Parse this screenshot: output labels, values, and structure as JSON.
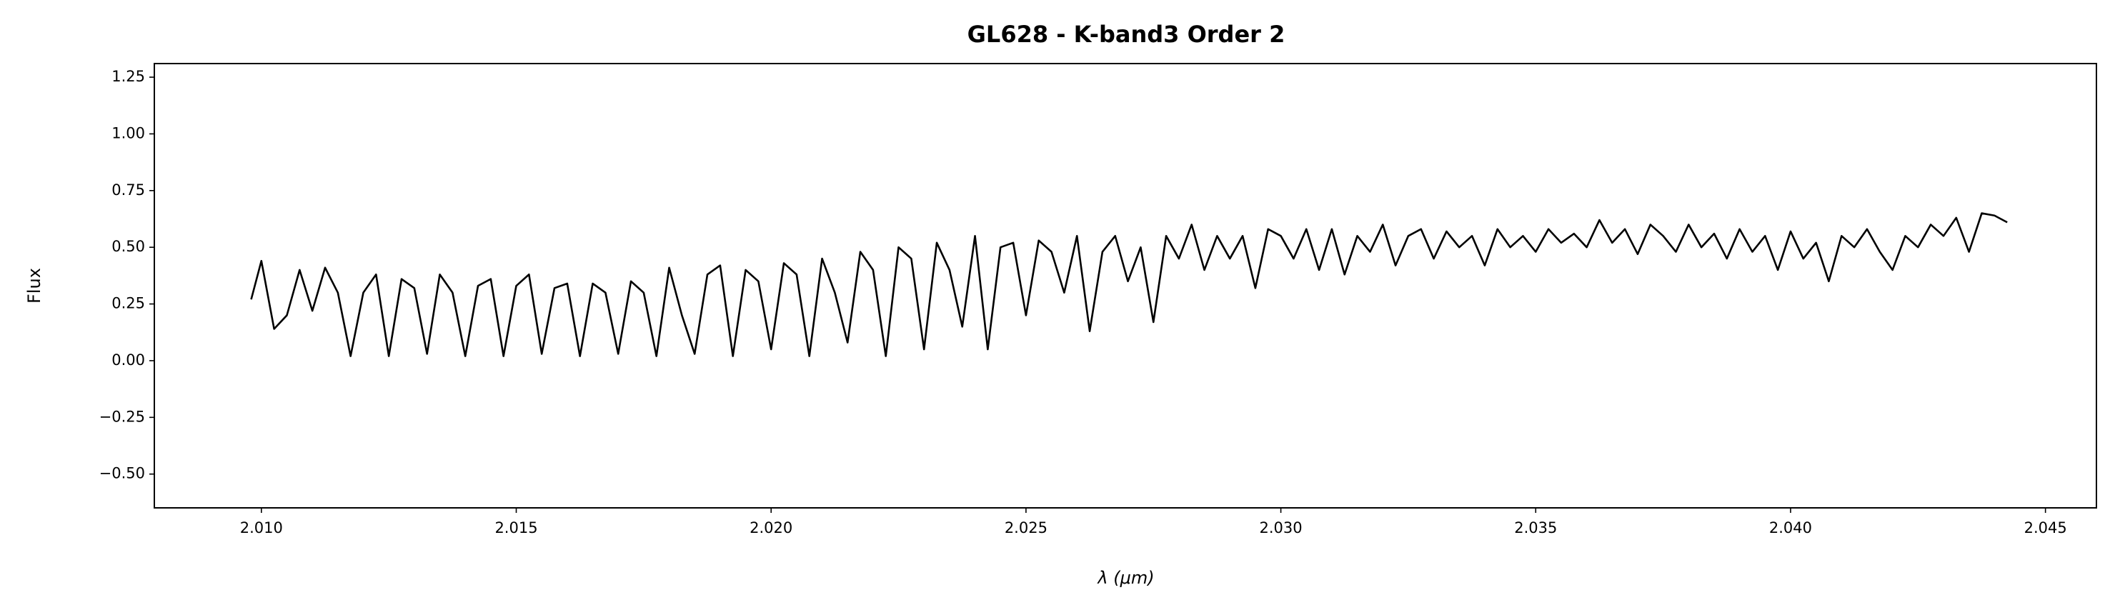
{
  "chart_data": {
    "type": "line",
    "title": "GL628 - K-band3 Order 2",
    "x_label": "λ (μm)",
    "y_label": "Flux",
    "color": "#000000",
    "grid": false,
    "xlim": [
      2.0079,
      2.046
    ],
    "ylim": [
      -0.649,
      1.31
    ],
    "xticks": [
      {
        "value": 2.01,
        "label": "2.010"
      },
      {
        "value": 2.015,
        "label": "2.015"
      },
      {
        "value": 2.02,
        "label": "2.020"
      },
      {
        "value": 2.025,
        "label": "2.025"
      },
      {
        "value": 2.03,
        "label": "2.030"
      },
      {
        "value": 2.035,
        "label": "2.035"
      },
      {
        "value": 2.04,
        "label": "2.040"
      },
      {
        "value": 2.045,
        "label": "2.045"
      }
    ],
    "yticks": [
      {
        "value": -0.5,
        "label": "−0.50"
      },
      {
        "value": -0.25,
        "label": "−0.25"
      },
      {
        "value": 0,
        "label": "0.00"
      },
      {
        "value": 0.25,
        "label": "0.25"
      },
      {
        "value": 0.5,
        "label": "0.50"
      },
      {
        "value": 0.75,
        "label": "0.75"
      },
      {
        "value": 1,
        "label": "1.00"
      },
      {
        "value": 1.25,
        "label": "1.25"
      }
    ],
    "x": [
      2.0098,
      2.01,
      2.01025,
      2.0105,
      2.01075,
      2.011,
      2.01125,
      2.0115,
      2.01175,
      2.012,
      2.01225,
      2.0125,
      2.01275,
      2.013,
      2.01325,
      2.0135,
      2.01375,
      2.014,
      2.01425,
      2.0145,
      2.01475,
      2.015,
      2.01525,
      2.0155,
      2.01575,
      2.016,
      2.01625,
      2.0165,
      2.01675,
      2.017,
      2.01725,
      2.0175,
      2.01775,
      2.018,
      2.01825,
      2.0185,
      2.01875,
      2.019,
      2.01925,
      2.0195,
      2.01975,
      2.02,
      2.02025,
      2.0205,
      2.02075,
      2.021,
      2.02125,
      2.0215,
      2.02175,
      2.022,
      2.02225,
      2.0225,
      2.02275,
      2.023,
      2.02325,
      2.0235,
      2.02375,
      2.024,
      2.02425,
      2.0245,
      2.02475,
      2.025,
      2.02525,
      2.0255,
      2.02575,
      2.026,
      2.02625,
      2.0265,
      2.02675,
      2.027,
      2.02725,
      2.0275,
      2.02775,
      2.028,
      2.02825,
      2.0285,
      2.02875,
      2.029,
      2.02925,
      2.0295,
      2.02975,
      2.03,
      2.03025,
      2.0305,
      2.03075,
      2.031,
      2.03125,
      2.0315,
      2.03175,
      2.032,
      2.03225,
      2.0325,
      2.03275,
      2.033,
      2.03325,
      2.0335,
      2.03375,
      2.034,
      2.03425,
      2.0345,
      2.03475,
      2.035,
      2.03525,
      2.0355,
      2.03575,
      2.036,
      2.03625,
      2.0365,
      2.03675,
      2.037,
      2.03725,
      2.0375,
      2.03775,
      2.038,
      2.03825,
      2.0385,
      2.03875,
      2.039,
      2.03925,
      2.0395,
      2.03975,
      2.04,
      2.04025,
      2.0405,
      2.04075,
      2.041,
      2.04125,
      2.0415,
      2.04175,
      2.042,
      2.04225,
      2.0425,
      2.04275,
      2.043,
      2.04325,
      2.0435,
      2.04375,
      2.044,
      2.04425
    ],
    "values": [
      0.27,
      0.44,
      0.14,
      0.2,
      0.4,
      0.22,
      0.41,
      0.3,
      0.02,
      0.3,
      0.38,
      0.02,
      0.36,
      0.32,
      0.03,
      0.38,
      0.3,
      0.02,
      0.33,
      0.36,
      0.02,
      0.33,
      0.38,
      0.03,
      0.32,
      0.34,
      0.02,
      0.34,
      0.3,
      0.03,
      0.35,
      0.3,
      0.02,
      0.41,
      0.2,
      0.03,
      0.38,
      0.42,
      0.02,
      0.4,
      0.35,
      0.05,
      0.43,
      0.38,
      0.02,
      0.45,
      0.3,
      0.08,
      0.48,
      0.4,
      0.02,
      0.5,
      0.45,
      0.05,
      0.52,
      0.4,
      0.15,
      0.55,
      0.05,
      0.5,
      0.52,
      0.2,
      0.53,
      0.48,
      0.3,
      0.55,
      0.13,
      0.48,
      0.55,
      0.35,
      0.5,
      0.17,
      0.55,
      0.45,
      0.6,
      0.4,
      0.55,
      0.45,
      0.55,
      0.32,
      0.58,
      0.55,
      0.45,
      0.58,
      0.4,
      0.58,
      0.38,
      0.55,
      0.48,
      0.6,
      0.42,
      0.55,
      0.58,
      0.45,
      0.57,
      0.5,
      0.55,
      0.42,
      0.58,
      0.5,
      0.55,
      0.48,
      0.58,
      0.52,
      0.56,
      0.5,
      0.62,
      0.52,
      0.58,
      0.47,
      0.6,
      0.55,
      0.48,
      0.6,
      0.5,
      0.56,
      0.45,
      0.58,
      0.48,
      0.55,
      0.4,
      0.57,
      0.45,
      0.52,
      0.35,
      0.55,
      0.5,
      0.58,
      0.48,
      0.4,
      0.55,
      0.5,
      0.6,
      0.55,
      0.63,
      0.48,
      0.65,
      0.64,
      0.61
    ]
  }
}
